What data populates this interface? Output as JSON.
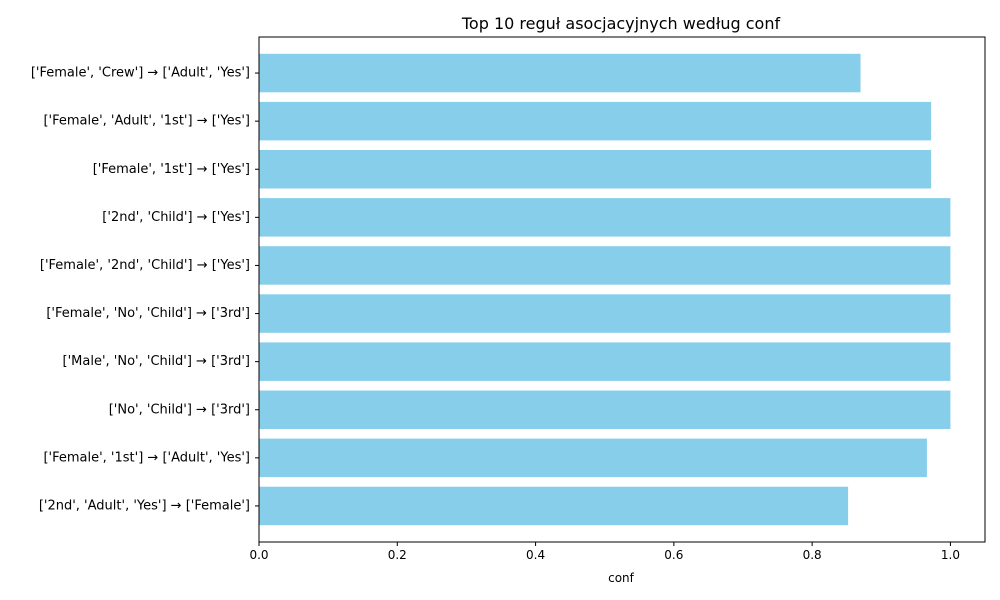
{
  "chart_data": {
    "type": "bar",
    "orientation": "horizontal",
    "title": "Top 10 reguł asocjacyjnych według conf",
    "xlabel": "conf",
    "ylabel": "",
    "xlim": [
      0,
      1.05
    ],
    "xticks": [
      "0.0",
      "0.2",
      "0.4",
      "0.6",
      "0.8",
      "1.0"
    ],
    "xtick_values": [
      0.0,
      0.2,
      0.4,
      0.6,
      0.8,
      1.0
    ],
    "grid": false,
    "bar_color": "#87CEEB",
    "categories": [
      "['Female', 'Crew'] → ['Adult', 'Yes']",
      "['Female', 'Adult', '1st'] → ['Yes']",
      "['Female', '1st'] → ['Yes']",
      "['2nd', 'Child'] → ['Yes']",
      "['Female', '2nd', 'Child'] → ['Yes']",
      "['Female', 'No', 'Child'] → ['3rd']",
      "['Male', 'No', 'Child'] → ['3rd']",
      "['No', 'Child'] → ['3rd']",
      "['Female', '1st'] → ['Adult', 'Yes']",
      "['2nd', 'Adult', 'Yes'] → ['Female']"
    ],
    "values": [
      0.87,
      0.972,
      0.972,
      1.0,
      1.0,
      1.0,
      1.0,
      1.0,
      0.966,
      0.852
    ]
  }
}
